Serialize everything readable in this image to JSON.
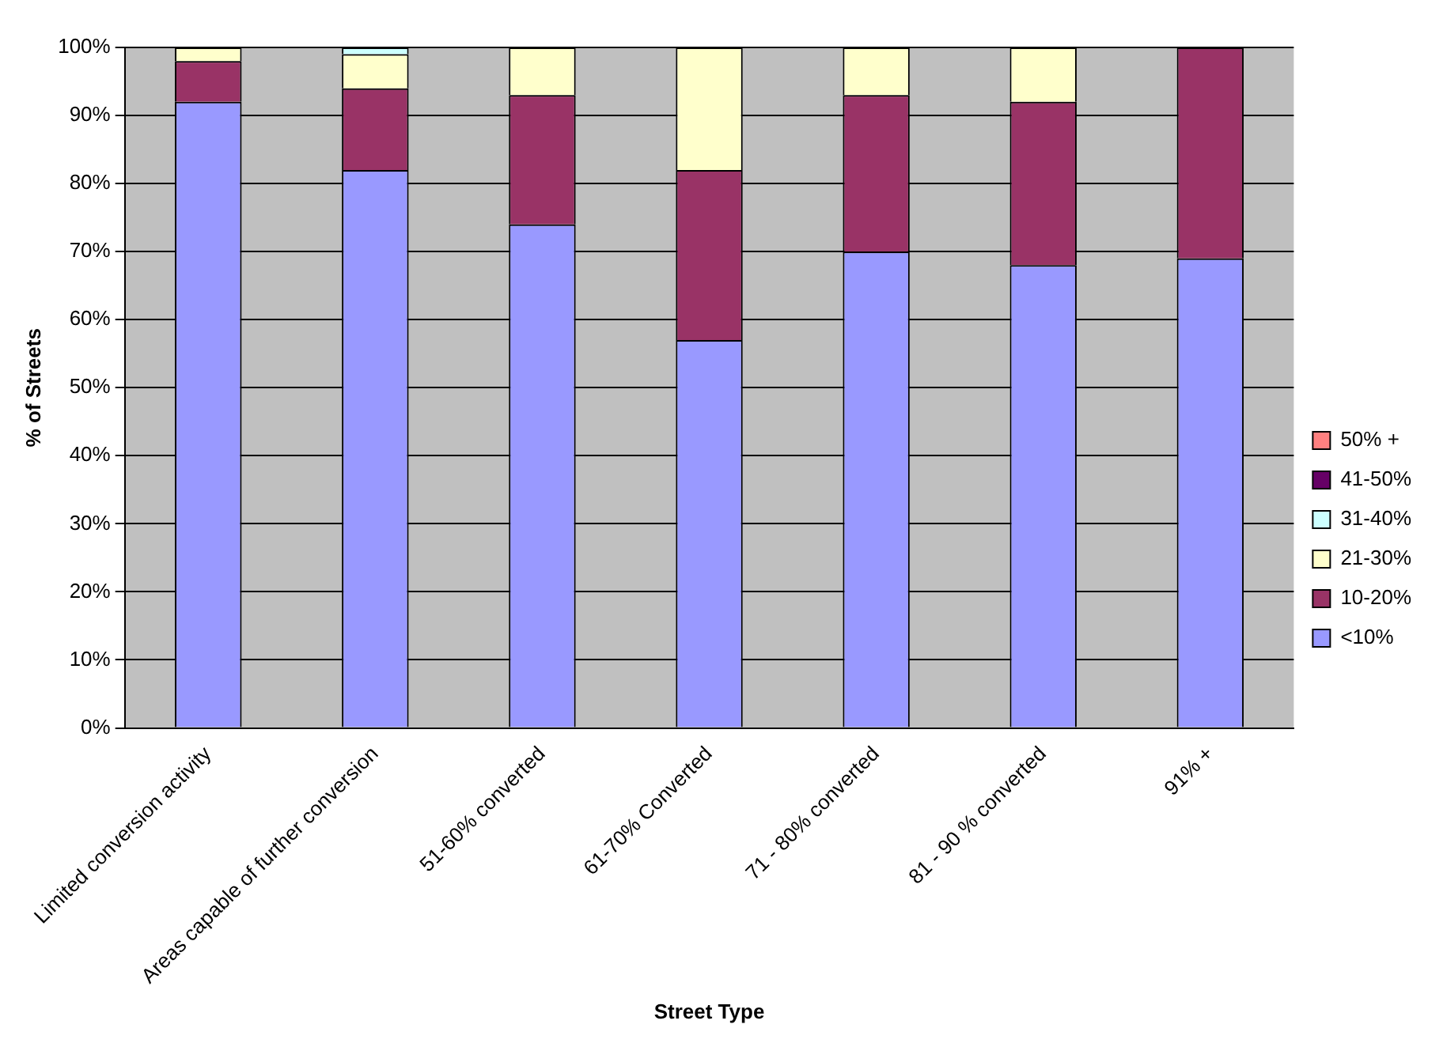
{
  "chart_data": {
    "type": "bar",
    "stacked": true,
    "xlabel": "Street Type",
    "ylabel": "% of Streets",
    "categories": [
      "Limited conversion activity",
      "Areas capable of further conversion",
      "51-60% converted",
      "61-70% Converted",
      "71 - 80% converted",
      "81 - 90 % converted",
      "91% +"
    ],
    "series": [
      {
        "name": "<10%",
        "color": "#9999ff",
        "values": [
          92,
          82,
          74,
          57,
          70,
          68,
          69
        ]
      },
      {
        "name": "10-20%",
        "color": "#993366",
        "values": [
          6,
          12,
          19,
          25,
          23,
          24,
          31
        ]
      },
      {
        "name": "21-30%",
        "color": "#ffffcc",
        "values": [
          2,
          5,
          7,
          18,
          7,
          8,
          0
        ]
      },
      {
        "name": "31-40%",
        "color": "#ccffff",
        "values": [
          0,
          1,
          0,
          0,
          0,
          0,
          0
        ]
      },
      {
        "name": "41-50%",
        "color": "#660066",
        "values": [
          0,
          0,
          0,
          0,
          0,
          0,
          0
        ]
      },
      {
        "name": "50% +",
        "color": "#ff8080",
        "values": [
          0,
          0,
          0,
          0,
          0,
          0,
          0
        ]
      }
    ],
    "ylim": [
      0,
      100
    ],
    "yticks": [
      {
        "value": 0,
        "label": "0%"
      },
      {
        "value": 10,
        "label": "10%"
      },
      {
        "value": 20,
        "label": "20%"
      },
      {
        "value": 30,
        "label": "30%"
      },
      {
        "value": 40,
        "label": "40%"
      },
      {
        "value": 50,
        "label": "50%"
      },
      {
        "value": 60,
        "label": "60%"
      },
      {
        "value": 70,
        "label": "70%"
      },
      {
        "value": 80,
        "label": "80%"
      },
      {
        "value": 90,
        "label": "90%"
      },
      {
        "value": 100,
        "label": "100%"
      }
    ],
    "grid": "y",
    "legend": "right"
  }
}
